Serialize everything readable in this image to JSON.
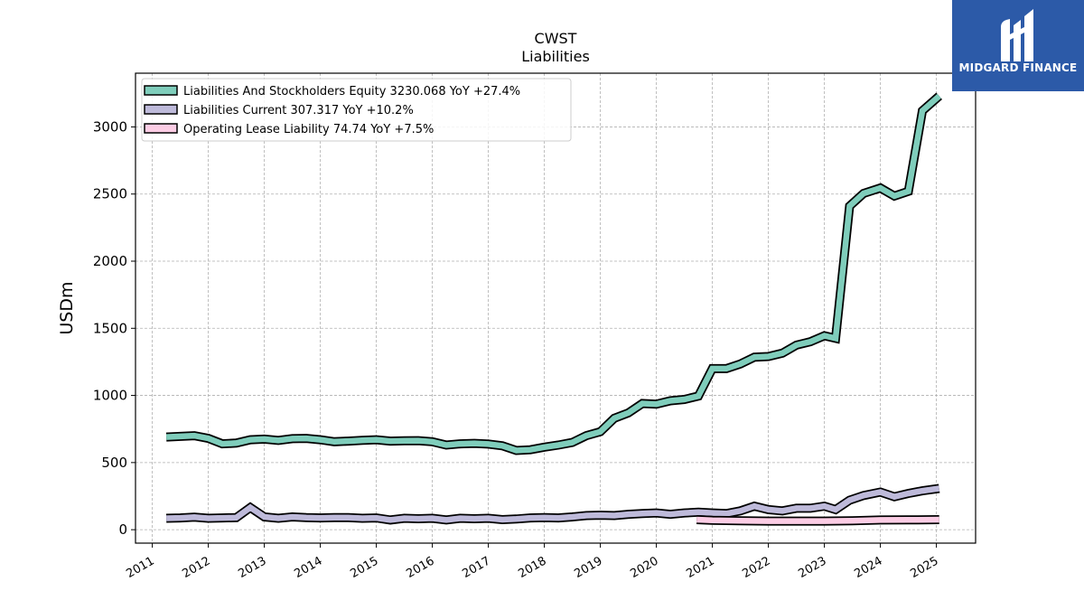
{
  "chart_data": {
    "type": "line",
    "title": "CWST",
    "subtitle": "Liabilities",
    "ylabel": "USDm",
    "xlabel": "",
    "xlim": [
      2010.7,
      2025.7
    ],
    "ylim": [
      -100,
      3400
    ],
    "yticks": [
      0,
      500,
      1000,
      1500,
      2000,
      2500,
      3000
    ],
    "xticks": [
      "2011",
      "2012",
      "2013",
      "2014",
      "2015",
      "2016",
      "2017",
      "2018",
      "2019",
      "2020",
      "2021",
      "2022",
      "2023",
      "2024",
      "2025"
    ],
    "grid": true,
    "legend_position": "top-left",
    "series": [
      {
        "name": "Liabilities And Stockholders Equity",
        "legend_label": "Liabilities And Stockholders Equity  3230.068 YoY +27.4%",
        "color": "#7fcdbb",
        "x": [
          2011.25,
          2011.5,
          2011.75,
          2012.0,
          2012.25,
          2012.5,
          2012.75,
          2013.0,
          2013.25,
          2013.5,
          2013.75,
          2014.0,
          2014.25,
          2014.5,
          2014.75,
          2015.0,
          2015.25,
          2015.5,
          2015.75,
          2016.0,
          2016.25,
          2016.5,
          2016.75,
          2017.0,
          2017.25,
          2017.5,
          2017.75,
          2018.0,
          2018.25,
          2018.5,
          2018.75,
          2019.0,
          2019.25,
          2019.5,
          2019.75,
          2020.0,
          2020.25,
          2020.5,
          2020.75,
          2021.0,
          2021.25,
          2021.5,
          2021.75,
          2022.0,
          2022.25,
          2022.5,
          2022.75,
          2023.0,
          2023.2,
          2023.45,
          2023.7,
          2024.0,
          2024.25,
          2024.5,
          2024.75,
          2025.05
        ],
        "values": [
          690,
          695,
          700,
          680,
          640,
          645,
          670,
          675,
          665,
          678,
          680,
          670,
          655,
          660,
          665,
          670,
          660,
          662,
          663,
          655,
          630,
          640,
          643,
          638,
          625,
          590,
          595,
          615,
          630,
          650,
          700,
          730,
          830,
          870,
          940,
          935,
          960,
          970,
          995,
          1200,
          1200,
          1235,
          1285,
          1290,
          1315,
          1375,
          1400,
          1445,
          1425,
          2410,
          2505,
          2545,
          2485,
          2520,
          3120,
          3230
        ]
      },
      {
        "name": "Liabilities Current",
        "legend_label": "Liabilities Current  307.317 YoY +10.2%",
        "color": "#bebada",
        "x": [
          2011.25,
          2011.5,
          2011.75,
          2012.0,
          2012.25,
          2012.5,
          2012.75,
          2013.0,
          2013.25,
          2013.5,
          2013.75,
          2014.0,
          2014.25,
          2014.5,
          2014.75,
          2015.0,
          2015.25,
          2015.5,
          2015.75,
          2016.0,
          2016.25,
          2016.5,
          2016.75,
          2017.0,
          2017.25,
          2017.5,
          2017.75,
          2018.0,
          2018.25,
          2018.5,
          2018.75,
          2019.0,
          2019.25,
          2019.5,
          2019.75,
          2020.0,
          2020.25,
          2020.5,
          2020.75,
          2021.0,
          2021.25,
          2021.5,
          2021.75,
          2022.0,
          2022.25,
          2022.5,
          2022.75,
          2023.0,
          2023.2,
          2023.45,
          2023.7,
          2024.0,
          2024.25,
          2024.5,
          2024.75,
          2025.05
        ],
        "values": [
          85,
          88,
          93,
          85,
          88,
          90,
          165,
          95,
          85,
          95,
          90,
          88,
          90,
          90,
          85,
          88,
          72,
          85,
          82,
          85,
          72,
          85,
          82,
          85,
          75,
          80,
          88,
          90,
          88,
          95,
          105,
          108,
          105,
          115,
          120,
          125,
          115,
          125,
          130,
          125,
          120,
          140,
          175,
          150,
          140,
          160,
          160,
          175,
          150,
          220,
          255,
          280,
          245,
          270,
          290,
          307
        ]
      },
      {
        "name": "Operating Lease Liability",
        "legend_label": "Operating Lease Liability  74.74 YoY +7.5%",
        "color": "#fccde5",
        "x": [
          2020.72,
          2021.0,
          2021.5,
          2022.0,
          2022.5,
          2023.0,
          2023.5,
          2024.0,
          2024.5,
          2025.05
        ],
        "values": [
          75,
          70,
          67,
          64,
          64,
          64,
          67,
          72,
          73,
          75
        ]
      }
    ]
  },
  "brand": {
    "name": "MIDGARD FINANCE",
    "color": "#2c5aa8"
  }
}
